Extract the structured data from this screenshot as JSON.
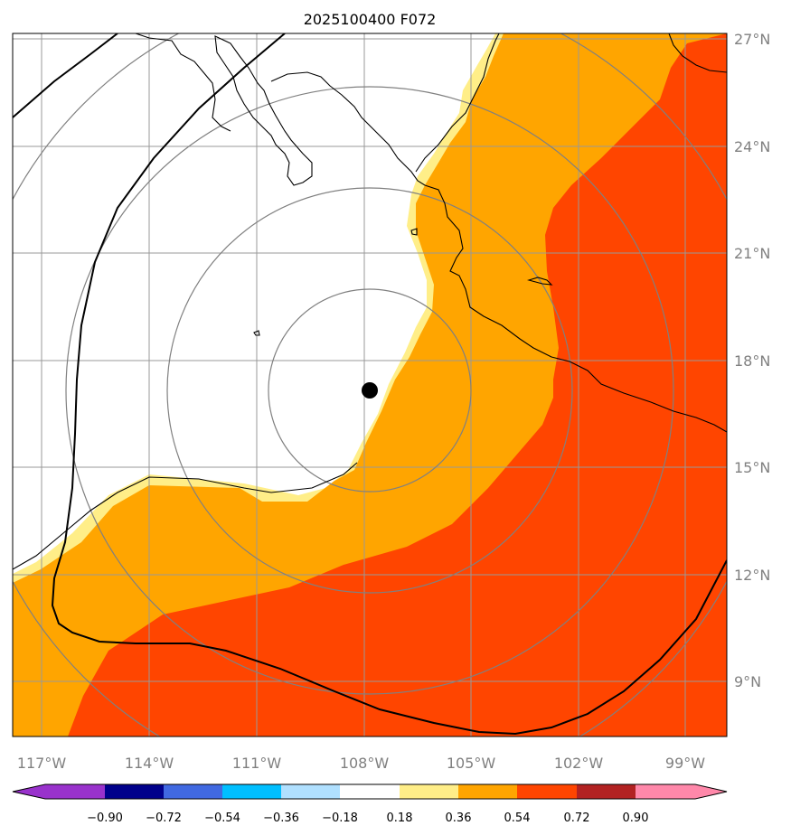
{
  "title": "2025100400 F072",
  "lon_labels": [
    "117°W",
    "114°W",
    "111°W",
    "108°W",
    "105°W",
    "102°W",
    "99°W"
  ],
  "lat_labels": [
    "27°N",
    "24°N",
    "21°N",
    "18°N",
    "15°N",
    "12°N",
    "9°N"
  ],
  "colorbar": {
    "ticks": [
      "−0.90",
      "−0.72",
      "−0.54",
      "−0.36",
      "−0.18",
      "0.18",
      "0.36",
      "0.54",
      "0.72",
      "0.90"
    ],
    "colors": [
      "#9932cc",
      "#00008b",
      "#4169e1",
      "#00bfff",
      "#b0e0ff",
      "#ffffff",
      "#ffee88",
      "#ffa500",
      "#ff4500",
      "#b22222",
      "#ff88aa"
    ]
  },
  "fill_colors": {
    "low": "#ffee88",
    "mid": "#ffa500",
    "high": "#ff4500"
  },
  "storm_marker": {
    "lon": -107.8,
    "lat": 17.2
  }
}
